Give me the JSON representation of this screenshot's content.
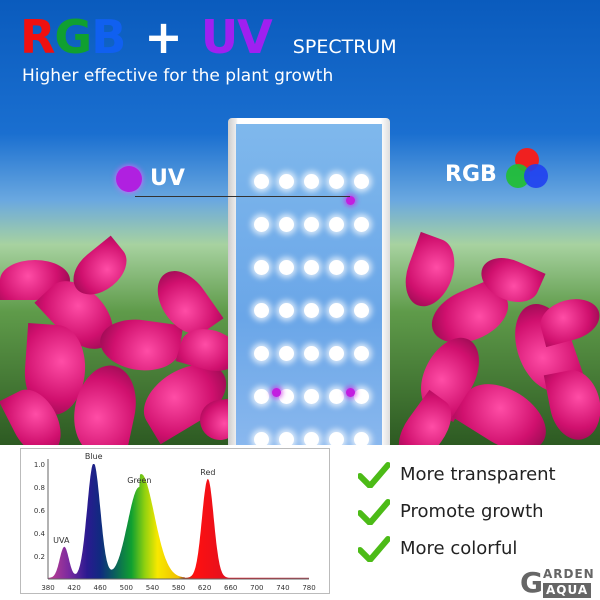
{
  "header": {
    "title_parts": [
      {
        "text": "RGB",
        "colors": [
          "#f01010",
          "#10a030",
          "#1060f0"
        ]
      },
      {
        "text": "+",
        "color": "#ffffff"
      },
      {
        "text": "UV",
        "color": "#a020f0"
      }
    ],
    "title_suffix": "SPECTRUM",
    "subtitle": "Higher effective for the plant growth"
  },
  "labels": {
    "uv": "UV",
    "rgb": "RGB",
    "uv_color": "#b020e0"
  },
  "features": [
    "More transparent",
    "Promote growth",
    "More colorful"
  ],
  "logo": {
    "top": "ARDEN",
    "bottom": "AQUA",
    "initial": "G"
  },
  "chart_data": {
    "type": "area",
    "xlim": [
      380,
      780
    ],
    "ylim": [
      0,
      1.0
    ],
    "xticks": [
      380,
      420,
      460,
      500,
      540,
      580,
      620,
      660,
      700,
      740,
      780
    ],
    "yticks": [
      0.2,
      0.4,
      0.6,
      0.8,
      1.0
    ],
    "peaks": [
      {
        "name": "UVA",
        "center": 405,
        "height": 0.27,
        "width_nm": 7
      },
      {
        "name": "Blue",
        "center": 450,
        "height": 1.0,
        "width_nm": 10
      },
      {
        "name": "Green",
        "center": 520,
        "height": 0.79,
        "width_nm": 18
      },
      {
        "name": "Red",
        "center": 625,
        "height": 0.86,
        "width_nm": 9
      }
    ],
    "grid": false
  }
}
